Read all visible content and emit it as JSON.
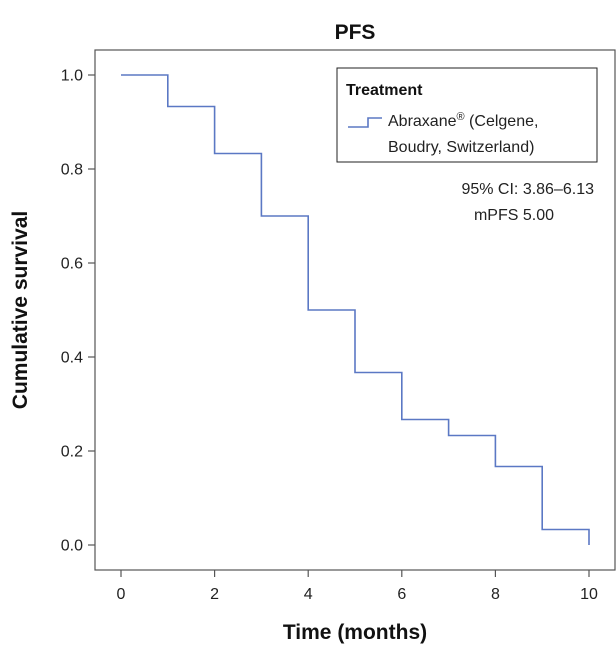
{
  "chart_data": {
    "type": "line",
    "step": true,
    "title": "PFS",
    "xlabel": "Time (months)",
    "ylabel": "Cumulative survival",
    "xlim": [
      0,
      10
    ],
    "ylim": [
      0,
      1
    ],
    "xticks": [
      0,
      2,
      4,
      6,
      8,
      10
    ],
    "yticks": [
      0.0,
      0.2,
      0.4,
      0.6,
      0.8,
      1.0
    ],
    "xtick_labels": [
      "0",
      "2",
      "4",
      "6",
      "8",
      "10"
    ],
    "ytick_labels": [
      "0.0",
      "0.2",
      "0.4",
      "0.6",
      "0.8",
      "1.0"
    ],
    "grid": false,
    "legend": {
      "title": "Treatment",
      "placement": "top-right",
      "line1": "Abraxane",
      "registered": "®",
      "line1_rest": " (Celgene,",
      "line2": "Boudry, Switzerland)"
    },
    "annotations": [
      "95% CI: 3.86–6.13",
      "mPFS 5.00"
    ],
    "series": [
      {
        "name": "Abraxane® (Celgene, Boudry, Switzerland)",
        "color": "#5b78c4",
        "x": [
          0,
          1,
          2,
          3,
          4,
          5,
          6,
          7,
          8,
          9,
          10,
          10
        ],
        "y": [
          1.0,
          0.933,
          0.833,
          0.7,
          0.5,
          0.367,
          0.267,
          0.233,
          0.167,
          0.033,
          0.033,
          0.0
        ]
      }
    ]
  }
}
